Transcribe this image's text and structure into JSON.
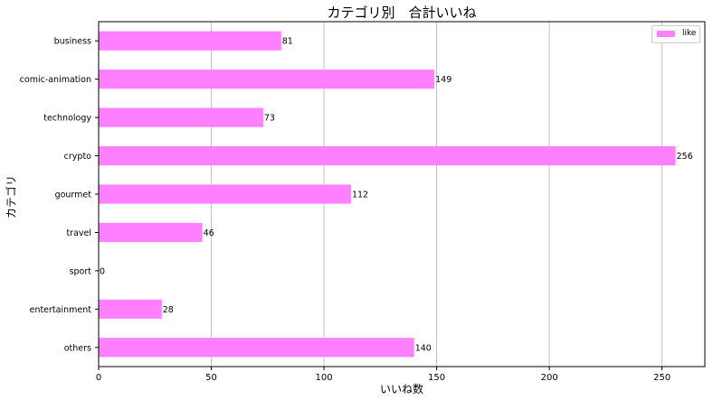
{
  "chart_data": {
    "type": "bar",
    "orientation": "horizontal",
    "title": "カテゴリ別　合計いいね",
    "xlabel": "いいね数",
    "ylabel": "カテゴリ",
    "categories": [
      "business",
      "comic-animation",
      "technology",
      "crypto",
      "gourmet",
      "travel",
      "sport",
      "entertainment",
      "others"
    ],
    "series": [
      {
        "name": "like",
        "values": [
          81,
          149,
          73,
          256,
          112,
          46,
          0,
          28,
          140
        ],
        "color": "#ff80ff"
      }
    ],
    "data_labels": [
      "81",
      "149",
      "73",
      "256",
      "112",
      "46",
      "0",
      "28",
      "140"
    ],
    "xlim": [
      0,
      269
    ],
    "xticks": [
      0,
      50,
      100,
      150,
      200,
      250
    ],
    "xtick_labels": [
      "0",
      "50",
      "100",
      "150",
      "200",
      "250"
    ],
    "grid": "vertical",
    "legend_position": "top-right"
  }
}
